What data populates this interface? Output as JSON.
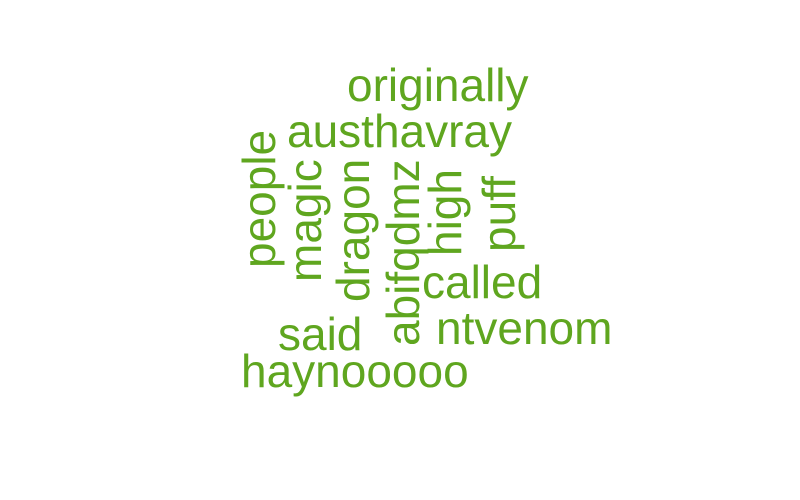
{
  "word_color": "#5fa61f",
  "words": [
    {
      "text": "originally",
      "orientation": "horizontal"
    },
    {
      "text": "austhavray",
      "orientation": "horizontal"
    },
    {
      "text": "people",
      "orientation": "vertical"
    },
    {
      "text": "magic",
      "orientation": "vertical"
    },
    {
      "text": "dragon",
      "orientation": "vertical"
    },
    {
      "text": "abifqdmz",
      "orientation": "vertical"
    },
    {
      "text": "high",
      "orientation": "vertical"
    },
    {
      "text": "puff",
      "orientation": "vertical"
    },
    {
      "text": "called",
      "orientation": "horizontal"
    },
    {
      "text": "said",
      "orientation": "horizontal"
    },
    {
      "text": "ntvenom",
      "orientation": "horizontal"
    },
    {
      "text": "haynooooo",
      "orientation": "horizontal"
    }
  ]
}
